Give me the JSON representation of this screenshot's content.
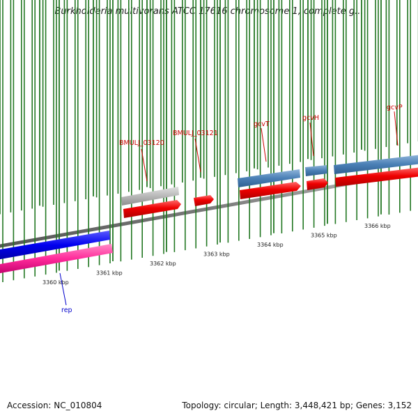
{
  "title": "Burkholderia multivorans ATCC 17616 chromosome 1, complete g...",
  "footer": {
    "accession": "Accession: NC_010804",
    "summary": "Topology: circular; Length: 3,448,421 bp; Genes: 3,152"
  },
  "ticks": [
    {
      "label": "3360 kbp",
      "kbp": 3360
    },
    {
      "label": "3361 kbp",
      "kbp": 3361
    },
    {
      "label": "3362 kbp",
      "kbp": 3362
    },
    {
      "label": "3363 kbp",
      "kbp": 3363
    },
    {
      "label": "3364 kbp",
      "kbp": 3364
    },
    {
      "label": "3365 kbp",
      "kbp": 3365
    },
    {
      "label": "3366 kbp",
      "kbp": 3366
    }
  ],
  "genes": [
    {
      "name": "rep",
      "color": "#0000ee",
      "label_color": "#0000cc",
      "strand": "-"
    },
    {
      "name": "BMULJ_03120",
      "color": "#ee0000",
      "label_color": "#cc0000",
      "strand": "+"
    },
    {
      "name": "BMULJ_03121",
      "color": "#ee0000",
      "label_color": "#cc0000",
      "strand": "+"
    },
    {
      "name": "gcvT",
      "color": "#ee0000",
      "label_color": "#cc0000",
      "strand": "+"
    },
    {
      "name": "gcvH",
      "color": "#ee0000",
      "label_color": "#cc0000",
      "strand": "+"
    },
    {
      "name": "gcvP",
      "color": "#ee0000",
      "label_color": "#cc0000",
      "strand": "+"
    }
  ],
  "colors": {
    "backbone": "#777777",
    "tick": "#227722",
    "cds_plus": "#ee0000",
    "cds_minus": "#0000ee",
    "gene_plus": "#4a7fb5",
    "gene_minus": "#ff2a9a",
    "pseudogene": "#b8b8b8"
  }
}
